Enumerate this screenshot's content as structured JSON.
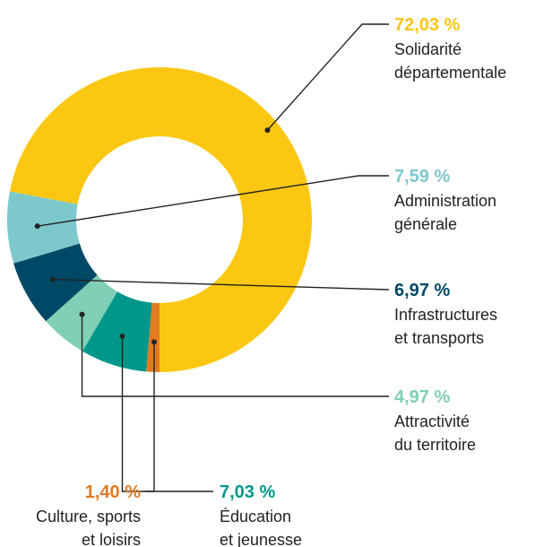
{
  "chart_data": {
    "type": "pie",
    "donut": true,
    "legend": "none",
    "slices": [
      {
        "label_lines": [
          "Solidarité",
          "départementale"
        ],
        "value_text": "72,03 %",
        "value": 72.03,
        "color": "#FBC712"
      },
      {
        "label_lines": [
          "Administration",
          "générale"
        ],
        "value_text": "7,59 %",
        "value": 7.59,
        "color": "#7DC8CC"
      },
      {
        "label_lines": [
          "Infrastructures",
          "et transports"
        ],
        "value_text": "6,97 %",
        "value": 6.97,
        "color": "#004966"
      },
      {
        "label_lines": [
          "Attractivité",
          "du territoire"
        ],
        "value_text": "4,97 %",
        "value": 4.97,
        "color": "#80CFB6"
      },
      {
        "label_lines": [
          "Éducation",
          "et jeunesse"
        ],
        "value_text": "7,03 %",
        "value": 7.03,
        "color": "#00978A"
      },
      {
        "label_lines": [
          "Culture, sports",
          "et loisirs"
        ],
        "value_text": "1,40 %",
        "value": 1.4,
        "color": "#E07B22"
      }
    ]
  }
}
